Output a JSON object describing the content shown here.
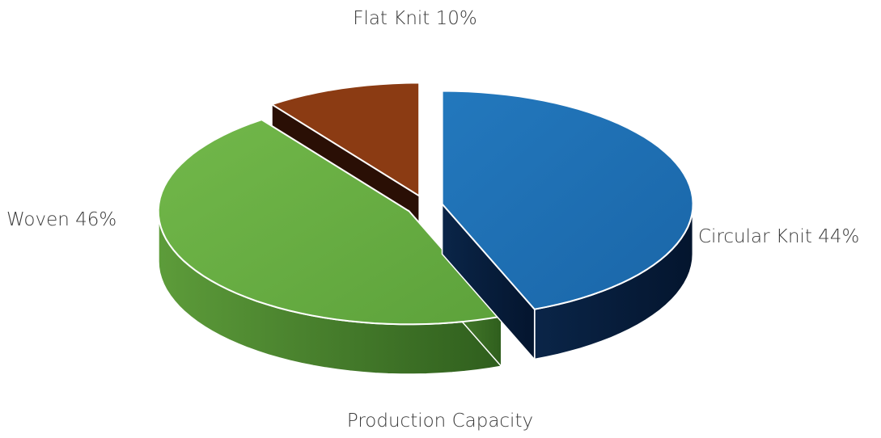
{
  "chart_data": {
    "type": "pie",
    "title": "Production Capacity",
    "three_d": true,
    "exploded": true,
    "legend": "none",
    "slices": [
      {
        "label": "Circular Knit",
        "value": 44,
        "display": "Circular Knit 44%",
        "color": "#1f6fb2",
        "side_color": "#0b2347"
      },
      {
        "label": "Woven",
        "value": 46,
        "display": "Woven 46%",
        "color": "#6aad45",
        "side_color": "#3f7a2a"
      },
      {
        "label": "Flat Knit",
        "value": 10,
        "display": "Flat Knit 10%",
        "color": "#8b3b13",
        "side_color": "#2a0f05"
      }
    ]
  }
}
